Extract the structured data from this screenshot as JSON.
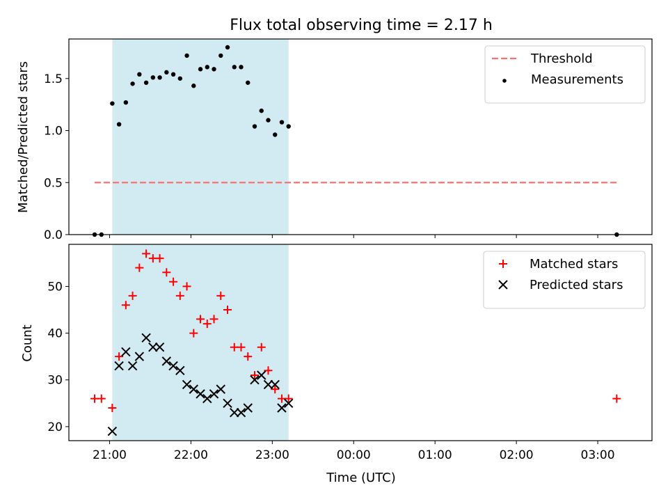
{
  "figure": {
    "title": "Flux total observing time = 2.17 h",
    "xlabel": "Time (UTC)"
  },
  "chart_data": [
    {
      "type": "scatter",
      "ylabel": "Matched/Predicted stars",
      "xlim": [
        "20:30",
        "03:40"
      ],
      "ylim": [
        0,
        1.88
      ],
      "yticks": [
        "0.0",
        "0.5",
        "1.0",
        "1.5"
      ],
      "grid": false,
      "shaded_span": {
        "start": "21:02",
        "end": "23:12",
        "color": "#add8e6"
      },
      "legend_position": "top-right",
      "threshold": {
        "name": "Threshold",
        "y": 0.5,
        "x_start": "20:49",
        "x_end": "03:14",
        "color": "#ff7070"
      },
      "series": [
        {
          "name": "Measurements",
          "color": "#000000",
          "marker": "dot",
          "x": [
            "20:49",
            "20:54",
            "21:02",
            "21:07",
            "21:12",
            "21:17",
            "21:22",
            "21:27",
            "21:32",
            "21:37",
            "21:42",
            "21:47",
            "21:52",
            "21:57",
            "22:02",
            "22:07",
            "22:12",
            "22:17",
            "22:22",
            "22:27",
            "22:32",
            "22:37",
            "22:42",
            "22:47",
            "22:52",
            "22:57",
            "23:02",
            "23:07",
            "23:12",
            "03:14"
          ],
          "y": [
            0.0,
            0.0,
            1.26,
            1.06,
            1.27,
            1.45,
            1.54,
            1.46,
            1.51,
            1.51,
            1.56,
            1.54,
            1.5,
            1.72,
            1.43,
            1.59,
            1.61,
            1.59,
            1.72,
            1.8,
            1.61,
            1.61,
            1.46,
            1.04,
            1.19,
            1.1,
            0.96,
            1.08,
            1.04,
            0.0
          ]
        }
      ]
    },
    {
      "type": "scatter",
      "ylabel": "Count",
      "xlim": [
        "20:30",
        "03:40"
      ],
      "ylim": [
        17,
        59
      ],
      "yticks": [
        "20",
        "30",
        "40",
        "50"
      ],
      "xticks": [
        "21:00",
        "22:00",
        "23:00",
        "00:00",
        "01:00",
        "02:00",
        "03:00"
      ],
      "grid": false,
      "shaded_span": {
        "start": "21:02",
        "end": "23:12",
        "color": "#add8e6"
      },
      "legend_position": "top-right",
      "series": [
        {
          "name": "Matched stars",
          "color": "#ff0000",
          "marker": "plus",
          "x": [
            "20:49",
            "20:54",
            "21:02",
            "21:07",
            "21:12",
            "21:17",
            "21:22",
            "21:27",
            "21:32",
            "21:37",
            "21:42",
            "21:47",
            "21:52",
            "21:57",
            "22:02",
            "22:07",
            "22:12",
            "22:17",
            "22:22",
            "22:27",
            "22:32",
            "22:37",
            "22:42",
            "22:47",
            "22:52",
            "22:57",
            "23:02",
            "23:07",
            "23:12",
            "03:14"
          ],
          "y": [
            26,
            26,
            24,
            35,
            46,
            48,
            54,
            57,
            56,
            56,
            53,
            51,
            48,
            50,
            40,
            43,
            42,
            43,
            48,
            45,
            37,
            37,
            35,
            31,
            37,
            32,
            28,
            26,
            26,
            26
          ]
        },
        {
          "name": "Predicted stars",
          "color": "#000000",
          "marker": "x",
          "x": [
            "21:02",
            "21:07",
            "21:12",
            "21:17",
            "21:22",
            "21:27",
            "21:32",
            "21:37",
            "21:42",
            "21:47",
            "21:52",
            "21:57",
            "22:02",
            "22:07",
            "22:12",
            "22:17",
            "22:22",
            "22:27",
            "22:32",
            "22:37",
            "22:42",
            "22:47",
            "22:52",
            "22:57",
            "23:02",
            "23:07",
            "23:12"
          ],
          "y": [
            19,
            33,
            36,
            33,
            35,
            39,
            37,
            37,
            34,
            33,
            32,
            29,
            28,
            27,
            26,
            27,
            28,
            25,
            23,
            23,
            24,
            30,
            31,
            29,
            29,
            24,
            25
          ]
        }
      ]
    }
  ]
}
